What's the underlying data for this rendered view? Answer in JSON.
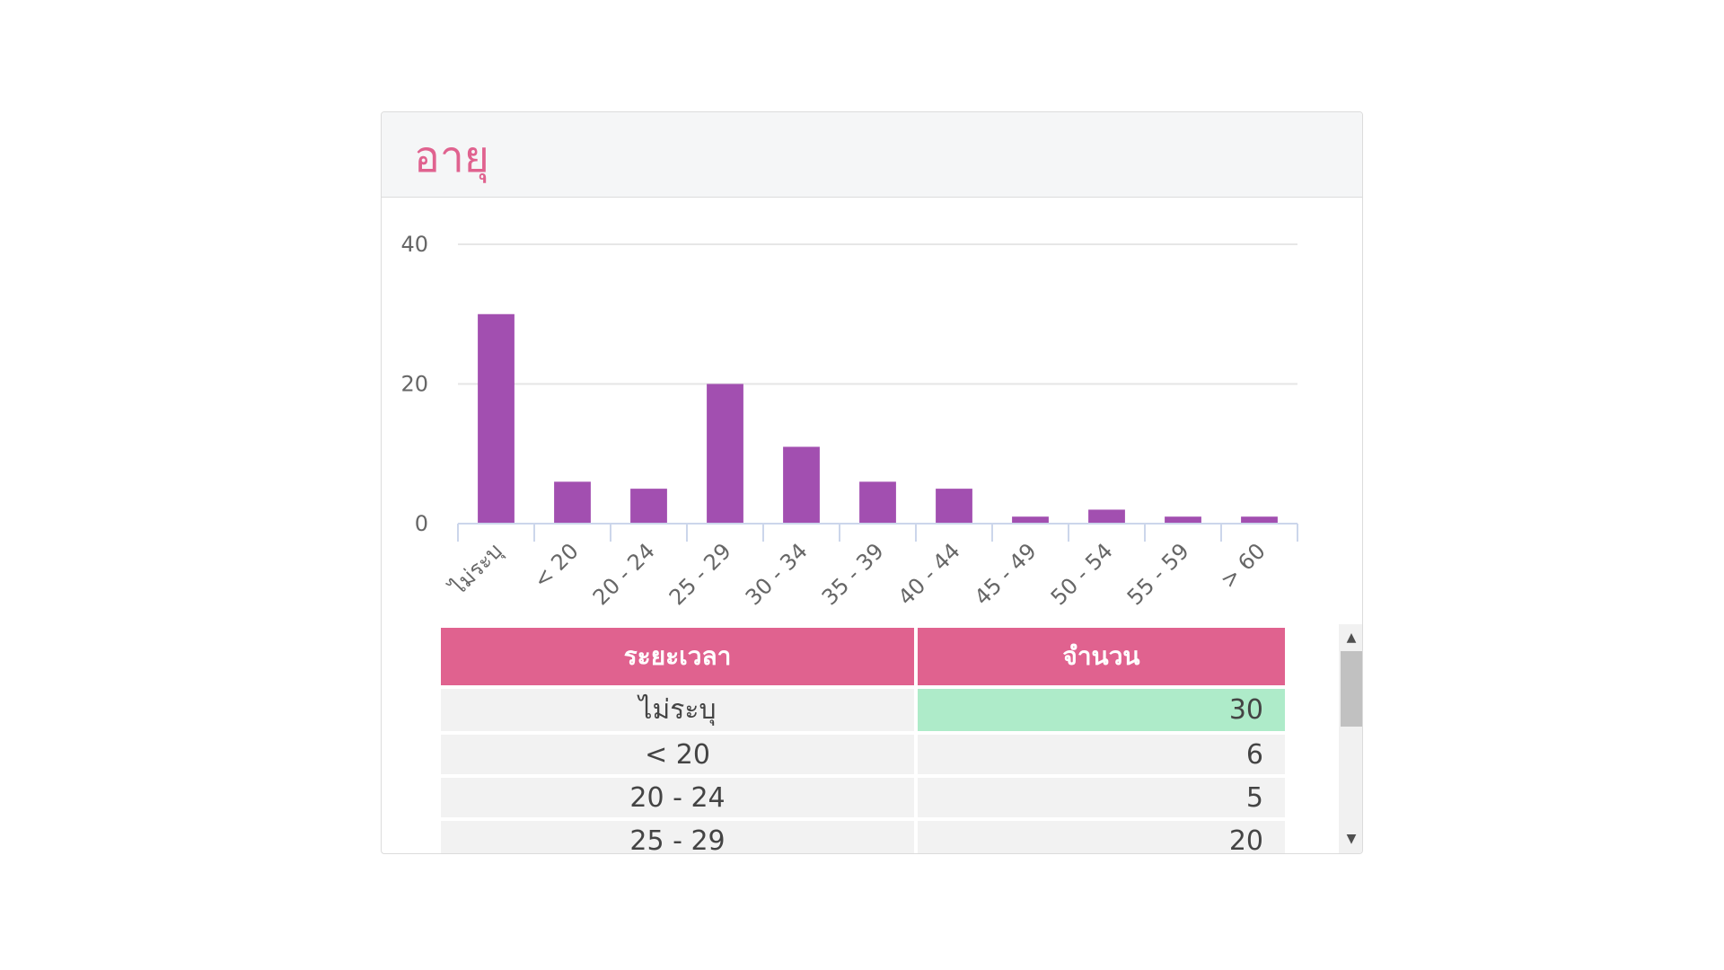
{
  "card": {
    "title": "อายุ"
  },
  "colors": {
    "bar": "#a24fb0",
    "title": "#e0628f",
    "header_bg": "#e0628f",
    "highlight": "#aeebc9"
  },
  "chart_data": {
    "type": "bar",
    "categories": [
      "ไม่ระบุ",
      "< 20",
      "20 - 24",
      "25 - 29",
      "30 - 34",
      "35 - 39",
      "40 - 44",
      "45 - 49",
      "50 - 54",
      "55 - 59",
      "> 60"
    ],
    "values": [
      30,
      6,
      5,
      20,
      11,
      6,
      5,
      1,
      2,
      1,
      1
    ],
    "ylim": [
      0,
      40
    ],
    "yticks": [
      "0",
      "20",
      "40"
    ],
    "grid": true,
    "legend": "none"
  },
  "table": {
    "headers": [
      "ระยะเวลา",
      "จำนวน"
    ],
    "rows": [
      {
        "range": "ไม่ระบุ",
        "count": "30",
        "highlight": true
      },
      {
        "range": "< 20",
        "count": "6",
        "highlight": false
      },
      {
        "range": "20 - 24",
        "count": "5",
        "highlight": false
      },
      {
        "range": "25 - 29",
        "count": "20",
        "highlight": false
      }
    ]
  },
  "scrollbar": {
    "up_icon": "scroll-up-arrow",
    "down_icon": "scroll-down-arrow"
  }
}
